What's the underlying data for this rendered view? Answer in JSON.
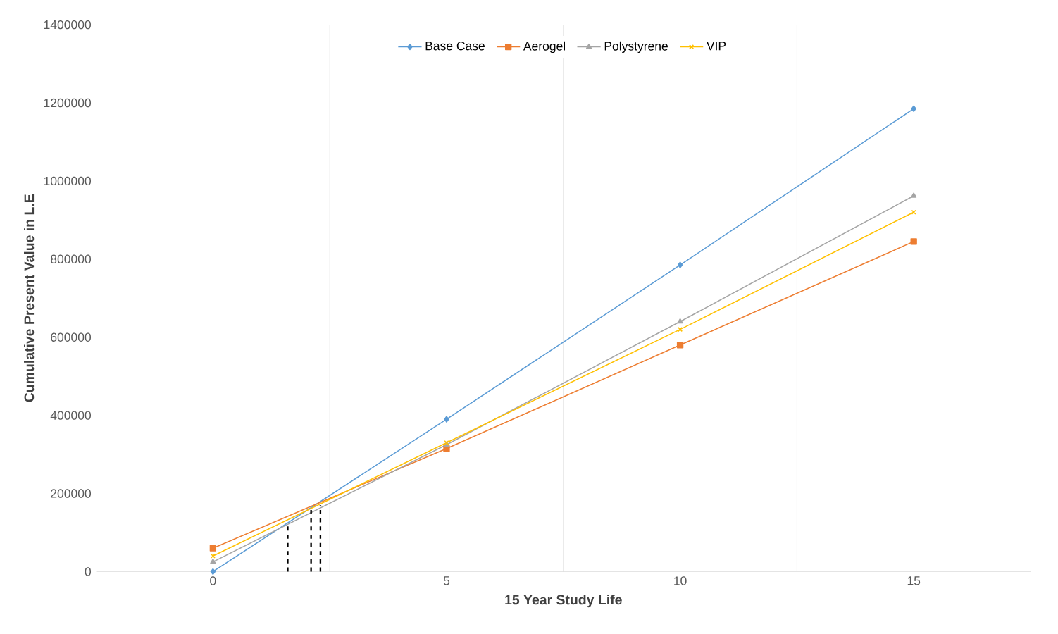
{
  "chart_data": {
    "type": "line",
    "xlabel": "15 Year Study Life",
    "ylabel": "Cumulative Present Value in L.E",
    "x": [
      0,
      5,
      10,
      15
    ],
    "xlim": [
      -2.5,
      17.5
    ],
    "xticks": [
      0,
      {
        "value": 2.5,
        "label": null
      },
      5,
      {
        "value": 7.5,
        "label": null
      },
      10,
      {
        "value": 12.5,
        "label": null
      },
      15
    ],
    "ylim": [
      0,
      1400000
    ],
    "yticks": [
      0,
      200000,
      400000,
      600000,
      800000,
      1000000,
      1200000,
      1400000
    ],
    "grid": "x",
    "legend": "top",
    "line_style": "solid",
    "series": [
      {
        "name": "Base Case",
        "color": "#5b9bd5",
        "marker": "diamond",
        "values": [
          0,
          390000,
          785000,
          1185000
        ]
      },
      {
        "name": "Aerogel",
        "color": "#ed7d31",
        "marker": "square",
        "values": [
          60000,
          315000,
          580000,
          845000
        ]
      },
      {
        "name": "Polystyrene",
        "color": "#a5a5a5",
        "marker": "triangle",
        "values": [
          25000,
          325000,
          640000,
          962000
        ]
      },
      {
        "name": "VIP",
        "color": "#ffc000",
        "marker": "cross",
        "values": [
          40000,
          330000,
          620000,
          920000
        ]
      },
      {
        "color": "#000000",
        "marker": "none",
        "line_style": "dashed",
        "x": [
          1.6,
          1.6
        ],
        "values": [
          0,
          120000
        ]
      },
      {
        "color": "#000000",
        "marker": "none",
        "line_style": "dashed",
        "x": [
          2.1,
          2.1
        ],
        "values": [
          0,
          163000
        ]
      },
      {
        "color": "#000000",
        "marker": "none",
        "line_style": "dashed",
        "x": [
          2.3,
          2.3
        ],
        "values": [
          0,
          170000
        ]
      }
    ]
  }
}
